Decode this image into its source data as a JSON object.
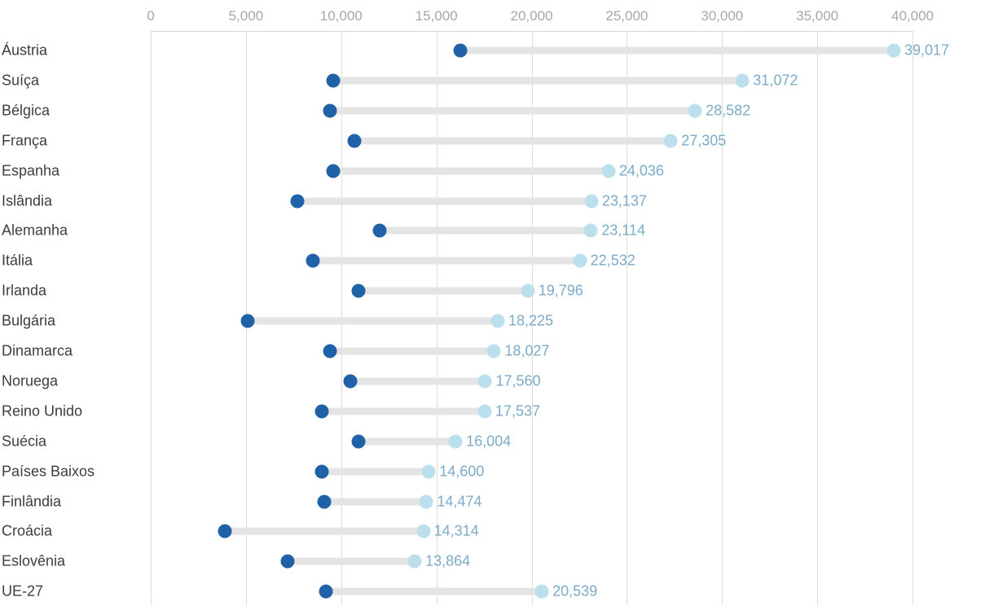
{
  "chart_data": {
    "type": "dumbbell",
    "title": "",
    "xlabel": "",
    "ylabel": "",
    "grid": "vertical",
    "legend": "none",
    "x_axis": {
      "min": 0,
      "max": 40000,
      "ticks": [
        0,
        5000,
        10000,
        15000,
        20000,
        25000,
        30000,
        35000,
        40000
      ],
      "tick_labels": [
        "0",
        "5,000",
        "10,000",
        "15,000",
        "20,000",
        "25,000",
        "30,000",
        "35,000",
        "40,000"
      ],
      "position": "top"
    },
    "colors": {
      "start_dot": "#2062a8",
      "end_dot": "#bcdfee",
      "connector": "#e4e4e4",
      "value_label": "#7cabc9",
      "category_label": "#3d3d3d",
      "tick_label": "#a7a7a7"
    },
    "series": [
      {
        "name": "start-dark-blue",
        "role": "lower estimated value"
      },
      {
        "name": "end-light-blue",
        "role": "labeled value"
      }
    ],
    "rows": [
      {
        "label": "Áustria",
        "start": 16250,
        "end": 39017,
        "end_label": "39,017"
      },
      {
        "label": "Suíça",
        "start": 9600,
        "end": 31072,
        "end_label": "31,072"
      },
      {
        "label": "Bélgica",
        "start": 9400,
        "end": 28582,
        "end_label": "28,582"
      },
      {
        "label": "França",
        "start": 10700,
        "end": 27305,
        "end_label": "27,305"
      },
      {
        "label": "Espanha",
        "start": 9600,
        "end": 24036,
        "end_label": "24,036"
      },
      {
        "label": "Islândia",
        "start": 7700,
        "end": 23137,
        "end_label": "23,137"
      },
      {
        "label": "Alemanha",
        "start": 12000,
        "end": 23114,
        "end_label": "23,114"
      },
      {
        "label": "Itália",
        "start": 8500,
        "end": 22532,
        "end_label": "22,532"
      },
      {
        "label": "Irlanda",
        "start": 10900,
        "end": 19796,
        "end_label": "19,796"
      },
      {
        "label": "Bulgária",
        "start": 5100,
        "end": 18225,
        "end_label": "18,225"
      },
      {
        "label": "Dinamarca",
        "start": 9400,
        "end": 18027,
        "end_label": "18,027"
      },
      {
        "label": "Noruega",
        "start": 10500,
        "end": 17560,
        "end_label": "17,560"
      },
      {
        "label": "Reino Unido",
        "start": 9000,
        "end": 17537,
        "end_label": "17,537"
      },
      {
        "label": "Suécia",
        "start": 10900,
        "end": 16004,
        "end_label": "16,004"
      },
      {
        "label": "Países Baixos",
        "start": 9000,
        "end": 14600,
        "end_label": "14,600"
      },
      {
        "label": "Finlândia",
        "start": 9100,
        "end": 14474,
        "end_label": "14,474"
      },
      {
        "label": "Croácia",
        "start": 3900,
        "end": 14314,
        "end_label": "14,314"
      },
      {
        "label": "Eslovênia",
        "start": 7200,
        "end": 13864,
        "end_label": "13,864"
      },
      {
        "label": "UE-27",
        "start": 9200,
        "end": 20539,
        "end_label": "20,539"
      }
    ]
  }
}
